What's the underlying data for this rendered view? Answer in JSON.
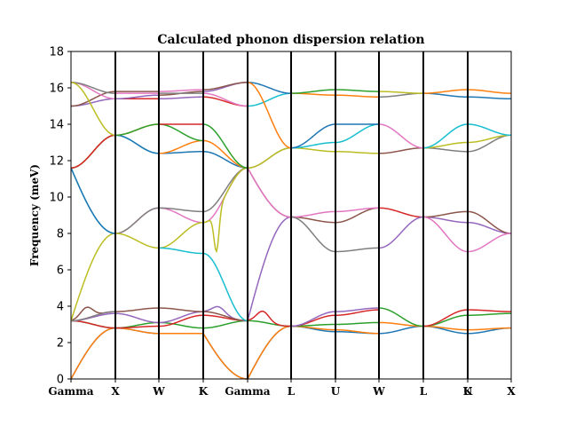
{
  "chart_data": {
    "type": "line",
    "title": "Calculated phonon dispersion relation",
    "xlabel": "",
    "ylabel": "Frequency (meV)",
    "ylim": [
      0,
      18
    ],
    "yticks": [
      0,
      2,
      4,
      6,
      8,
      10,
      12,
      14,
      16,
      18
    ],
    "grid": false,
    "x_ticks": [
      "Gamma",
      "X",
      "W",
      "K",
      "Gamma",
      "L",
      "U",
      "W",
      "L",
      "K",
      "U",
      "X"
    ],
    "colors": [
      "#1f77b4",
      "#ff7f0e",
      "#2ca02c",
      "#d62728",
      "#9467bd",
      "#8c564b",
      "#e377c2",
      "#7f7f7f",
      "#bcbd22",
      "#17becf"
    ],
    "segments": [
      {
        "from": "Gamma",
        "to": "X",
        "series": [
          {
            "values": [
              0.0,
              2.8
            ],
            "shape": "sin"
          },
          {
            "values": [
              0.0,
              2.8
            ],
            "shape": "sin"
          },
          {
            "values": [
              3.2,
              2.8
            ]
          },
          {
            "values": [
              3.2,
              2.8
            ]
          },
          {
            "values": [
              3.2,
              3.6
            ]
          },
          {
            "values": [
              3.2,
              3.7
            ],
            "peak": 4.3
          },
          {
            "values": [
              3.2,
              3.7
            ]
          },
          {
            "values": [
              3.2,
              3.7
            ]
          },
          {
            "values": [
              3.2,
              8.0
            ],
            "shape": "sin"
          },
          {
            "values": [
              11.6,
              8.0
            ],
            "shape": "sin"
          },
          {
            "values": [
              11.6,
              8.0
            ],
            "shape": "sin"
          },
          {
            "values": [
              11.6,
              13.4
            ]
          },
          {
            "values": [
              11.6,
              13.4
            ]
          },
          {
            "values": [
              11.6,
              13.4
            ]
          },
          {
            "values": [
              15.0,
              15.4
            ]
          },
          {
            "values": [
              15.0,
              15.8
            ]
          },
          {
            "values": [
              16.3,
              15.4
            ]
          },
          {
            "values": [
              16.3,
              15.7
            ]
          },
          {
            "values": [
              16.3,
              13.4
            ]
          }
        ]
      },
      {
        "from": "X",
        "to": "W",
        "series": [
          {
            "values": [
              2.8,
              2.5
            ]
          },
          {
            "values": [
              2.8,
              2.5
            ]
          },
          {
            "values": [
              2.8,
              3.1
            ]
          },
          {
            "values": [
              2.8,
              2.9
            ]
          },
          {
            "values": [
              3.6,
              3.1
            ]
          },
          {
            "values": [
              3.7,
              3.9
            ]
          },
          {
            "values": [
              8.0,
              9.4
            ]
          },
          {
            "values": [
              8.0,
              9.4
            ]
          },
          {
            "values": [
              8.0,
              7.2
            ]
          },
          {
            "values": [
              13.4,
              12.4
            ]
          },
          {
            "values": [
              13.4,
              12.4
            ]
          },
          {
            "values": [
              13.4,
              14.0
            ]
          },
          {
            "values": [
              13.4,
              14.0
            ]
          },
          {
            "values": [
              15.4,
              15.4
            ]
          },
          {
            "values": [
              15.4,
              15.6
            ]
          },
          {
            "values": [
              15.8,
              15.8
            ]
          },
          {
            "values": [
              15.7,
              15.7
            ]
          }
        ]
      },
      {
        "from": "W",
        "to": "K",
        "series": [
          {
            "values": [
              2.5,
              2.5
            ]
          },
          {
            "values": [
              2.5,
              2.5
            ]
          },
          {
            "values": [
              3.1,
              2.8
            ]
          },
          {
            "values": [
              2.9,
              3.5
            ]
          },
          {
            "values": [
              3.1,
              3.7
            ]
          },
          {
            "values": [
              3.9,
              3.7
            ]
          },
          {
            "values": [
              9.4,
              8.6
            ]
          },
          {
            "values": [
              9.4,
              9.2
            ]
          },
          {
            "values": [
              7.2,
              8.6
            ]
          },
          {
            "values": [
              7.2,
              6.9
            ]
          },
          {
            "values": [
              12.4,
              12.5
            ]
          },
          {
            "values": [
              12.4,
              13.1
            ]
          },
          {
            "values": [
              14.0,
              13.1
            ]
          },
          {
            "values": [
              14.0,
              14.0
            ]
          },
          {
            "values": [
              15.4,
              15.5
            ]
          },
          {
            "values": [
              15.6,
              15.8
            ]
          },
          {
            "values": [
              15.8,
              15.9
            ]
          },
          {
            "values": [
              15.7,
              15.7
            ]
          }
        ]
      },
      {
        "from": "K",
        "to": "Gamma",
        "series": [
          {
            "values": [
              2.5,
              0.0
            ],
            "shape": "sin"
          },
          {
            "values": [
              2.5,
              0.0
            ],
            "shape": "sin"
          },
          {
            "values": [
              2.8,
              3.2
            ]
          },
          {
            "values": [
              3.5,
              3.2
            ]
          },
          {
            "values": [
              3.7,
              3.2
            ],
            "peak": 4.1
          },
          {
            "values": [
              3.7,
              3.2
            ]
          },
          {
            "values": [
              8.6,
              11.6
            ]
          },
          {
            "values": [
              9.2,
              11.6
            ]
          },
          {
            "values": [
              8.6,
              11.6
            ],
            "dip": 7.3
          },
          {
            "values": [
              6.9,
              3.2
            ]
          },
          {
            "values": [
              12.5,
              11.6
            ]
          },
          {
            "values": [
              13.1,
              11.6
            ]
          },
          {
            "values": [
              14.0,
              11.6
            ]
          },
          {
            "values": [
              15.5,
              15.0
            ]
          },
          {
            "values": [
              15.8,
              16.3
            ]
          },
          {
            "values": [
              15.9,
              16.3
            ]
          },
          {
            "values": [
              15.7,
              15.0
            ]
          }
        ]
      },
      {
        "from": "Gamma",
        "to": "L",
        "series": [
          {
            "values": [
              0.0,
              2.9
            ],
            "shape": "sin"
          },
          {
            "values": [
              0.0,
              2.9
            ],
            "shape": "sin"
          },
          {
            "values": [
              3.2,
              2.9
            ]
          },
          {
            "values": [
              3.2,
              2.9
            ],
            "peak": 3.8
          },
          {
            "values": [
              3.2,
              8.9
            ],
            "shape": "sin"
          },
          {
            "values": [
              11.6,
              8.9
            ],
            "shape": "sin"
          },
          {
            "values": [
              11.6,
              8.9
            ],
            "shape": "sin"
          },
          {
            "values": [
              11.6,
              12.7
            ]
          },
          {
            "values": [
              11.6,
              12.7
            ]
          },
          {
            "values": [
              15.0,
              15.7
            ]
          },
          {
            "values": [
              16.3,
              15.7
            ]
          },
          {
            "values": [
              16.3,
              12.7
            ]
          }
        ]
      },
      {
        "from": "L",
        "to": "U",
        "series": [
          {
            "values": [
              2.9,
              2.6
            ]
          },
          {
            "values": [
              2.9,
              2.7
            ]
          },
          {
            "values": [
              2.9,
              3.0
            ]
          },
          {
            "values": [
              2.9,
              3.5
            ]
          },
          {
            "values": [
              2.9,
              3.7
            ]
          },
          {
            "values": [
              8.9,
              8.6
            ]
          },
          {
            "values": [
              8.9,
              9.2
            ]
          },
          {
            "values": [
              8.9,
              7.0
            ]
          },
          {
            "values": [
              12.7,
              12.5
            ]
          },
          {
            "values": [
              12.7,
              13.0
            ]
          },
          {
            "values": [
              12.7,
              14.0
            ]
          },
          {
            "values": [
              15.7,
              15.6
            ]
          },
          {
            "values": [
              15.7,
              15.9
            ]
          }
        ]
      },
      {
        "from": "U",
        "to": "W",
        "series": [
          {
            "values": [
              2.6,
              2.5
            ]
          },
          {
            "values": [
              2.7,
              2.5
            ]
          },
          {
            "values": [
              3.0,
              3.1
            ]
          },
          {
            "values": [
              3.5,
              3.8
            ]
          },
          {
            "values": [
              3.7,
              3.9
            ]
          },
          {
            "values": [
              8.6,
              9.4
            ]
          },
          {
            "values": [
              9.2,
              9.4
            ]
          },
          {
            "values": [
              7.0,
              7.2
            ]
          },
          {
            "values": [
              12.5,
              12.4
            ]
          },
          {
            "values": [
              13.0,
              14.0
            ]
          },
          {
            "values": [
              14.0,
              14.0
            ]
          },
          {
            "values": [
              15.6,
              15.5
            ]
          },
          {
            "values": [
              15.9,
              15.8
            ]
          }
        ]
      },
      {
        "from": "W",
        "to": "L",
        "series": [
          {
            "values": [
              2.5,
              2.9
            ]
          },
          {
            "values": [
              3.1,
              2.9
            ]
          },
          {
            "values": [
              3.9,
              2.9
            ]
          },
          {
            "values": [
              9.4,
              8.9
            ]
          },
          {
            "values": [
              7.2,
              8.9
            ]
          },
          {
            "values": [
              12.4,
              12.7
            ]
          },
          {
            "values": [
              14.0,
              12.7
            ]
          },
          {
            "values": [
              15.5,
              15.7
            ]
          },
          {
            "values": [
              15.8,
              15.7
            ]
          }
        ]
      },
      {
        "from": "L",
        "to": "K",
        "series": [
          {
            "values": [
              2.9,
              2.5
            ]
          },
          {
            "values": [
              2.9,
              2.7
            ]
          },
          {
            "values": [
              2.9,
              3.5
            ]
          },
          {
            "values": [
              2.9,
              3.8
            ]
          },
          {
            "values": [
              8.9,
              8.6
            ]
          },
          {
            "values": [
              8.9,
              9.2
            ]
          },
          {
            "values": [
              8.9,
              7.0
            ]
          },
          {
            "values": [
              12.7,
              12.5
            ]
          },
          {
            "values": [
              12.7,
              13.0
            ]
          },
          {
            "values": [
              12.7,
              14.0
            ]
          },
          {
            "values": [
              15.7,
              15.5
            ]
          },
          {
            "values": [
              15.7,
              15.9
            ]
          }
        ]
      },
      {
        "from": "U",
        "to": "X",
        "series": [
          {
            "values": [
              2.5,
              2.8
            ]
          },
          {
            "values": [
              2.7,
              2.8
            ]
          },
          {
            "values": [
              3.5,
              3.6
            ]
          },
          {
            "values": [
              3.8,
              3.7
            ]
          },
          {
            "values": [
              8.6,
              8.0
            ]
          },
          {
            "values": [
              9.2,
              8.0
            ]
          },
          {
            "values": [
              7.0,
              8.0
            ]
          },
          {
            "values": [
              12.5,
              13.4
            ]
          },
          {
            "values": [
              13.0,
              13.4
            ]
          },
          {
            "values": [
              14.0,
              13.4
            ]
          },
          {
            "values": [
              15.5,
              15.4
            ]
          },
          {
            "values": [
              15.9,
              15.7
            ]
          }
        ]
      }
    ]
  }
}
